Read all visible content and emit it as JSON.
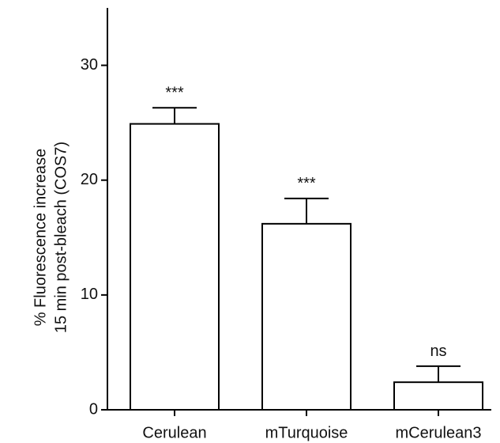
{
  "chart_data": {
    "type": "bar",
    "y_label": [
      "% Fluorescence increase",
      "15 min post-bleach (COS7)"
    ],
    "categories": [
      "Cerulean",
      "mTurquoise",
      "mCerulean3"
    ],
    "values": [
      24.9,
      16.2,
      2.4
    ],
    "errors": [
      1.4,
      2.2,
      1.4
    ],
    "annotations": [
      "***",
      "***",
      "ns"
    ],
    "color": "#ffffff",
    "ylim": [
      0,
      35
    ],
    "yticks": [
      0,
      10,
      20,
      30
    ],
    "grid": false
  }
}
